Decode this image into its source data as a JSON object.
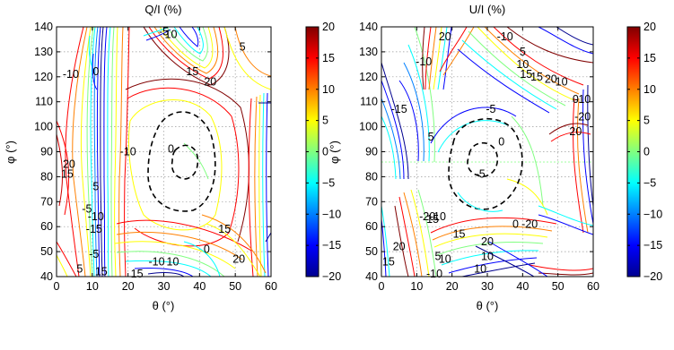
{
  "chart_data": [
    {
      "type": "contour",
      "title": "Q/I (%)",
      "xlabel": "θ (°)",
      "ylabel": "φ (°)",
      "xlim": [
        0,
        60
      ],
      "ylim": [
        40,
        140
      ],
      "xticks": [
        "0",
        "10",
        "20",
        "30",
        "40",
        "50",
        "60"
      ],
      "yticks": [
        "40",
        "50",
        "60",
        "70",
        "80",
        "90",
        "100",
        "110",
        "120",
        "130",
        "140"
      ],
      "grid": true,
      "colorbar": {
        "range": [
          -20,
          20
        ],
        "ticks": [
          "20",
          "15",
          "10",
          "5",
          "0",
          "−5",
          "−10",
          "−15",
          "−20"
        ],
        "placement": "right"
      },
      "contour_labels": [
        {
          "text": "5",
          "x": 52,
          "y": 132
        },
        {
          "text": "15",
          "x": 38,
          "y": 122
        },
        {
          "text": "20",
          "x": 43,
          "y": 118
        },
        {
          "text": "-5",
          "x": 30,
          "y": 138
        },
        {
          "text": "10",
          "x": 32,
          "y": 137
        },
        {
          "text": "-10",
          "x": 20,
          "y": 90
        },
        {
          "text": "0",
          "x": 32,
          "y": 91
        },
        {
          "text": "20",
          "x": 3.5,
          "y": 85
        },
        {
          "text": "15",
          "x": 3,
          "y": 81
        },
        {
          "text": "5",
          "x": 11,
          "y": 76
        },
        {
          "text": "-5",
          "x": 8.5,
          "y": 67
        },
        {
          "text": "-10",
          "x": 11,
          "y": 64
        },
        {
          "text": "-15",
          "x": 10.5,
          "y": 59
        },
        {
          "text": "15",
          "x": 47,
          "y": 59
        },
        {
          "text": "0",
          "x": 42,
          "y": 51
        },
        {
          "text": "20",
          "x": 51,
          "y": 47
        },
        {
          "text": "-5",
          "x": 10.5,
          "y": 49
        },
        {
          "text": "5",
          "x": 6.5,
          "y": 43
        },
        {
          "text": "15",
          "x": 12.5,
          "y": 42
        },
        {
          "text": "-10",
          "x": 28,
          "y": 46
        },
        {
          "text": "10",
          "x": 32.5,
          "y": 46
        },
        {
          "text": "15",
          "x": 22.5,
          "y": 41
        },
        {
          "text": "0",
          "x": 11,
          "y": 122
        },
        {
          "text": "-10",
          "x": 4,
          "y": 121
        }
      ]
    },
    {
      "type": "contour",
      "title": "U/I (%)",
      "xlabel": "θ (°)",
      "ylabel": "φ (°)",
      "xlim": [
        0,
        60
      ],
      "ylim": [
        40,
        140
      ],
      "xticks": [
        "0",
        "10",
        "20",
        "30",
        "40",
        "50",
        "60"
      ],
      "yticks": [
        "40",
        "50",
        "60",
        "70",
        "80",
        "90",
        "100",
        "110",
        "120",
        "130",
        "140"
      ],
      "grid": true,
      "colorbar": {
        "range": [
          -20,
          20
        ],
        "ticks": [
          "20",
          "15",
          "10",
          "5",
          "0",
          "−5",
          "−10",
          "−15",
          "−20"
        ],
        "placement": "right"
      },
      "contour_labels": [
        {
          "text": "-15",
          "x": 5,
          "y": 107
        },
        {
          "text": "-5",
          "x": 31,
          "y": 107
        },
        {
          "text": "0",
          "x": 34,
          "y": 94
        },
        {
          "text": "5",
          "x": 14,
          "y": 96
        },
        {
          "text": "-5",
          "x": 28,
          "y": 81
        },
        {
          "text": "10",
          "x": 40,
          "y": 125
        },
        {
          "text": "5",
          "x": 40,
          "y": 130
        },
        {
          "text": "-10",
          "x": 35,
          "y": 136
        },
        {
          "text": "15",
          "x": 41,
          "y": 121
        },
        {
          "text": "15",
          "x": 44,
          "y": 120
        },
        {
          "text": "20",
          "x": 48,
          "y": 119
        },
        {
          "text": "10",
          "x": 51,
          "y": 118
        },
        {
          "text": "-10",
          "x": 12,
          "y": 126
        },
        {
          "text": "20",
          "x": 18,
          "y": 136
        },
        {
          "text": "0",
          "x": 55,
          "y": 111
        },
        {
          "text": "-10",
          "x": 57,
          "y": 111
        },
        {
          "text": "-20",
          "x": 57,
          "y": 104
        },
        {
          "text": "20",
          "x": 55,
          "y": 98
        },
        {
          "text": "15",
          "x": 22,
          "y": 57
        },
        {
          "text": "20",
          "x": 30,
          "y": 54
        },
        {
          "text": "0",
          "x": 38,
          "y": 61
        },
        {
          "text": "-20",
          "x": 42,
          "y": 61
        },
        {
          "text": "-10",
          "x": 16,
          "y": 64
        },
        {
          "text": "-15",
          "x": 14,
          "y": 63
        },
        {
          "text": "-20",
          "x": 13,
          "y": 64
        },
        {
          "text": "20",
          "x": 5,
          "y": 52
        },
        {
          "text": "15",
          "x": 2,
          "y": 46
        },
        {
          "text": "5",
          "x": 16,
          "y": 48
        },
        {
          "text": "10",
          "x": 18,
          "y": 47
        },
        {
          "text": "10",
          "x": 30,
          "y": 48
        },
        {
          "text": "10",
          "x": 28,
          "y": 43
        },
        {
          "text": "-10",
          "x": 15,
          "y": 41
        }
      ]
    }
  ]
}
